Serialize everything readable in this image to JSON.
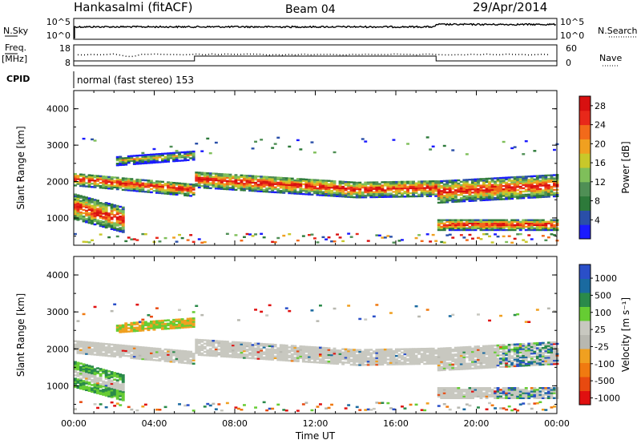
{
  "header": {
    "station": "Hankasalmi (fitACF)",
    "beam": "Beam 04",
    "date": "29/Apr/2014"
  },
  "status_panel": {
    "nsky_label": "N.Sky",
    "nsky_ticks": [
      "10^5",
      "10^0"
    ],
    "nsearch_label": "N.Search",
    "nsearch_ticks": [
      "10^5",
      "10^0"
    ],
    "freq_label": "Freq.",
    "freq_unit": "[MHz]",
    "freq_ticks": [
      "18",
      "8"
    ],
    "nave_label": "Nave",
    "nave_ticks": [
      "60",
      "0"
    ],
    "cpid_label": "CPID",
    "cpid_text": "normal (fast stereo) 153"
  },
  "colors": {
    "power_scale": [
      "#1a1aff",
      "#2a4fa8",
      "#2d7a3a",
      "#4f8f55",
      "#7fbf5a",
      "#c8c82a",
      "#f0a020",
      "#f26a1a",
      "#e8281a",
      "#d81010"
    ],
    "velocity_scale": [
      "#2a4fc8",
      "#1a6aa0",
      "#2a8a4a",
      "#66cc33",
      "#c8c8c0",
      "#b8b8b0",
      "#f0a020",
      "#f07a10",
      "#e84a10",
      "#e01010"
    ],
    "ground_scatter": "#c8c8c0"
  },
  "chart_data": [
    {
      "type": "heatmap",
      "panel": "power",
      "xlabel": "",
      "ylabel": "Slant Range [km]",
      "x_tick_labels": [
        "00:00",
        "04:00",
        "08:00",
        "12:00",
        "16:00",
        "20:00",
        "00:00"
      ],
      "y_tick_labels": [
        "1000",
        "2000",
        "3000",
        "4000"
      ],
      "xlim": [
        0,
        24
      ],
      "ylim": [
        250,
        4500
      ],
      "colorbar": {
        "label": "Power [dB]",
        "ticks": [
          "4",
          "8",
          "12",
          "16",
          "20",
          "24",
          "28"
        ],
        "range": [
          0,
          30
        ]
      },
      "echo_bands": [
        {
          "t_start": 0.0,
          "t_end": 2.5,
          "r_center": 1150,
          "r_width": 700,
          "level": "high"
        },
        {
          "t_start": 0.0,
          "t_end": 6.0,
          "r_center": 1900,
          "r_width": 350,
          "level": "high"
        },
        {
          "t_start": 2.0,
          "t_end": 6.0,
          "r_center": 2600,
          "r_width": 250,
          "level": "medium"
        },
        {
          "t_start": 6.0,
          "t_end": 18.0,
          "r_center": 1800,
          "r_width": 450,
          "level": "high"
        },
        {
          "t_start": 18.0,
          "t_end": 24.0,
          "r_center": 1700,
          "r_width": 600,
          "level": "high"
        },
        {
          "t_start": 18.0,
          "t_end": 24.0,
          "r_center": 800,
          "r_width": 300,
          "level": "high"
        }
      ]
    },
    {
      "type": "heatmap",
      "panel": "velocity",
      "xlabel": "Time UT",
      "ylabel": "Slant Range [km]",
      "x_tick_labels": [
        "00:00",
        "04:00",
        "08:00",
        "12:00",
        "16:00",
        "20:00",
        "00:00"
      ],
      "y_tick_labels": [
        "1000",
        "2000",
        "3000",
        "4000"
      ],
      "xlim": [
        0,
        24
      ],
      "ylim": [
        250,
        4500
      ],
      "colorbar": {
        "label": "Velocity [m s⁻¹]",
        "ticks": [
          "1000",
          "500",
          "100",
          "25",
          "-25",
          "-100",
          "-500",
          "-1000"
        ],
        "range": [
          -1000,
          1000
        ]
      }
    }
  ]
}
